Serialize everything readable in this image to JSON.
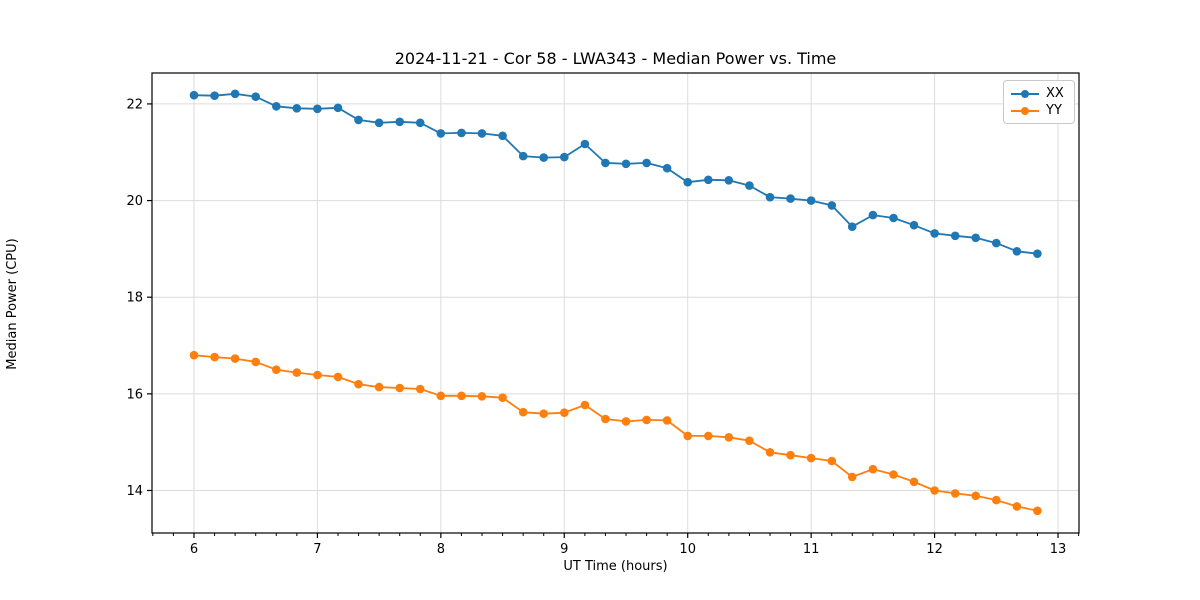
{
  "chart_data": {
    "type": "line",
    "title": "2024-11-21 - Cor 58 - LWA343 - Median Power vs. Time",
    "xlabel": "UT Time (hours)",
    "ylabel": "Median Power (CPU)",
    "x": [
      6.0,
      6.167,
      6.333,
      6.5,
      6.667,
      6.833,
      7.0,
      7.167,
      7.333,
      7.5,
      7.667,
      7.833,
      8.0,
      8.167,
      8.333,
      8.5,
      8.667,
      8.833,
      9.0,
      9.167,
      9.333,
      9.5,
      9.667,
      9.833,
      10.0,
      10.167,
      10.333,
      10.5,
      10.667,
      10.833,
      11.0,
      11.167,
      11.333,
      11.5,
      11.667,
      11.833,
      12.0,
      12.167,
      12.333,
      12.5,
      12.667,
      12.833
    ],
    "series": [
      {
        "name": "XX",
        "color": "#1f77b4",
        "values": [
          22.18,
          22.17,
          22.21,
          22.15,
          21.95,
          21.91,
          21.9,
          21.92,
          21.67,
          21.61,
          21.63,
          21.61,
          21.39,
          21.4,
          21.39,
          21.34,
          20.92,
          20.89,
          20.9,
          21.17,
          20.78,
          20.76,
          20.78,
          20.67,
          20.38,
          20.43,
          20.42,
          20.31,
          20.07,
          20.04,
          20.0,
          19.9,
          19.46,
          19.7,
          19.64,
          19.49,
          19.32,
          19.27,
          19.23,
          19.12,
          18.95,
          18.9
        ]
      },
      {
        "name": "YY",
        "color": "#ff7f0e",
        "values": [
          16.8,
          16.76,
          16.73,
          16.66,
          16.5,
          16.44,
          16.39,
          16.35,
          16.2,
          16.14,
          16.12,
          16.1,
          15.96,
          15.96,
          15.95,
          15.92,
          15.62,
          15.59,
          15.61,
          15.77,
          15.48,
          15.43,
          15.46,
          15.45,
          15.13,
          15.13,
          15.1,
          15.03,
          14.79,
          14.73,
          14.67,
          14.61,
          14.28,
          14.44,
          14.33,
          14.18,
          14.0,
          13.94,
          13.89,
          13.8,
          13.67,
          13.58
        ]
      }
    ],
    "xlim": [
      5.66,
      13.17
    ],
    "ylim": [
      13.12,
      22.64
    ],
    "xticks": [
      6,
      7,
      8,
      9,
      10,
      11,
      12,
      13
    ],
    "yticks": [
      14,
      16,
      18,
      20,
      22
    ],
    "x_minor_tick_step": 0.16667,
    "grid": true,
    "legend_position": "upper right",
    "marker": "o"
  },
  "colors": {
    "grid": "#dcdcdc",
    "spine": "#000000",
    "tick": "#000000",
    "background": "#ffffff"
  }
}
